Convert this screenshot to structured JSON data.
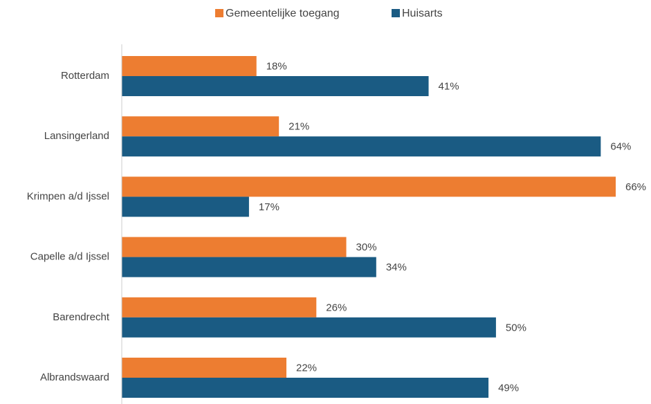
{
  "chart_data": {
    "type": "barh",
    "categories": [
      "Rotterdam",
      "Lansingerland",
      "Krimpen a/d Ijssel",
      "Capelle a/d Ijssel",
      "Barendrecht",
      "Albrandswaard"
    ],
    "series": [
      {
        "name": "Gemeentelijke toegang",
        "color": "#ed7d31",
        "values": [
          18,
          21,
          66,
          30,
          26,
          22
        ],
        "value_labels": [
          "18%",
          "21%",
          "66%",
          "30%",
          "26%",
          "22%"
        ]
      },
      {
        "name": "Huisarts",
        "color": "#1a5b83",
        "values": [
          41,
          64,
          17,
          34,
          50,
          49
        ],
        "value_labels": [
          "41%",
          "64%",
          "17%",
          "34%",
          "50%",
          "49%"
        ]
      }
    ],
    "legend": "top"
  }
}
